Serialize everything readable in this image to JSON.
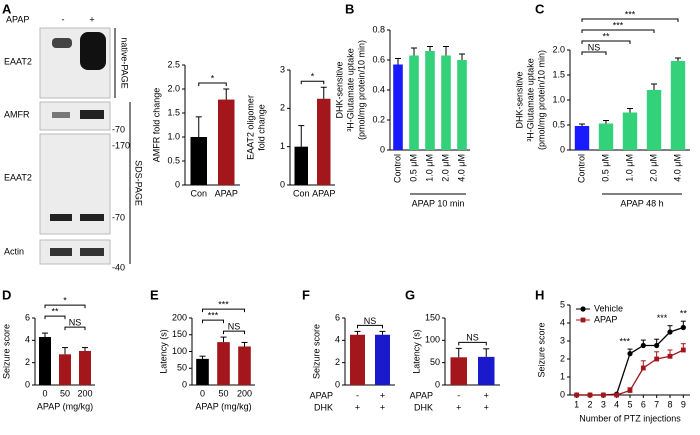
{
  "blot": {
    "panel": "A",
    "header": "APAP",
    "lanes": [
      "-",
      "+"
    ],
    "rows": [
      "EAAT2",
      "AMFR",
      "EAAT2",
      "Actin"
    ],
    "sections": [
      "native-PAGE",
      "SDS-PAGE"
    ],
    "markers": [
      "-70",
      "-170",
      "-70",
      "-40"
    ]
  },
  "chart_data": [
    {
      "type": "bar",
      "ylabel": [
        "AMFR fold change"
      ],
      "categories": [
        "Con",
        "APAP"
      ],
      "values": [
        1.0,
        1.78
      ],
      "errors": [
        0.42,
        0.22
      ],
      "colors": [
        "#000000",
        "#a3161b"
      ],
      "ylim": [
        0,
        2.5
      ],
      "yticks": [
        0,
        0.5,
        {
          "value": 1,
          "label": "1.0"
        },
        1.5,
        {
          "value": 2,
          "label": "2.0"
        },
        2.5
      ],
      "sig": [
        {
          "from": 0,
          "to": 1,
          "label": "*"
        }
      ]
    },
    {
      "type": "bar",
      "ylabel": [
        "EAAT2 oligomer",
        "fold change"
      ],
      "categories": [
        "Con",
        "APAP"
      ],
      "values": [
        1.0,
        2.25
      ],
      "errors": [
        0.55,
        0.3
      ],
      "colors": [
        "#000000",
        "#a3161b"
      ],
      "ylim": [
        0,
        3
      ],
      "yticks": [
        0,
        1,
        2,
        3
      ],
      "sig": [
        {
          "from": 0,
          "to": 1,
          "label": "*"
        }
      ]
    },
    {
      "type": "bar",
      "panel": "B",
      "ylabel": [
        "DHK-sensitive",
        "³H-Glutamate uptake",
        "(pmol/mg protein/10 min)"
      ],
      "categories": [
        "Control",
        "0.5 μM",
        "1.0 μM",
        "2.0 μM",
        "4.0 μM"
      ],
      "values": [
        0.57,
        0.63,
        0.66,
        0.63,
        0.6
      ],
      "errors": [
        0.04,
        0.05,
        0.03,
        0.06,
        0.04
      ],
      "colors": [
        "#1a1aff",
        "#33d17a",
        "#33d17a",
        "#33d17a",
        "#33d17a"
      ],
      "ylim": [
        0,
        0.8
      ],
      "yticks": [
        0,
        0.2,
        0.4,
        0.6,
        0.8
      ],
      "group": "APAP 10 min"
    },
    {
      "type": "bar",
      "panel": "C",
      "ylabel": [
        "DHK-sensitive",
        "³H-Glutamate uptake",
        "(pmol/mg protein/10 min)"
      ],
      "categories": [
        "Control",
        "0.5 μM",
        "1.0 μM",
        "2.0 μM",
        "4.0 μM"
      ],
      "values": [
        0.48,
        0.53,
        0.75,
        1.2,
        1.78
      ],
      "errors": [
        0.04,
        0.06,
        0.08,
        0.12,
        0.06
      ],
      "colors": [
        "#1a1aff",
        "#33d17a",
        "#33d17a",
        "#33d17a",
        "#33d17a"
      ],
      "ylim": [
        0,
        2
      ],
      "yticks": [
        0,
        0.5,
        {
          "value": 1,
          "label": "1.0"
        },
        1.5,
        {
          "value": 2,
          "label": "2.0"
        }
      ],
      "group": "APAP 48 h",
      "sig": [
        {
          "from": 0,
          "to": 1,
          "label": "NS"
        },
        {
          "from": 0,
          "to": 2,
          "label": "**"
        },
        {
          "from": 0,
          "to": 3,
          "label": "***"
        },
        {
          "from": 0,
          "to": 4,
          "label": "***"
        }
      ]
    },
    {
      "type": "bar",
      "panel": "D",
      "ylabel": [
        "Seizure score"
      ],
      "xlabel": "APAP (mg/kg)",
      "categories": [
        "0",
        "50",
        "200"
      ],
      "values": [
        4.3,
        2.75,
        3.05
      ],
      "errors": [
        0.35,
        0.6,
        0.3
      ],
      "colors": [
        "#000000",
        "#a3161b",
        "#a3161b"
      ],
      "ylim": [
        0,
        6
      ],
      "yticks": [
        0,
        2,
        4,
        6
      ],
      "sig": [
        {
          "from": 1,
          "to": 2,
          "label": "NS"
        },
        {
          "from": 0,
          "to": 1,
          "label": "**"
        },
        {
          "from": 0,
          "to": 2,
          "label": "*"
        }
      ]
    },
    {
      "type": "bar",
      "panel": "E",
      "ylabel": [
        "Latency (s)"
      ],
      "xlabel": "APAP (mg/kg)",
      "categories": [
        "0",
        "50",
        "200"
      ],
      "values": [
        78,
        128,
        115
      ],
      "errors": [
        8,
        15,
        12
      ],
      "colors": [
        "#000000",
        "#a3161b",
        "#a3161b"
      ],
      "ylim": [
        0,
        200
      ],
      "yticks": [
        0,
        50,
        100,
        150,
        200
      ],
      "sig": [
        {
          "from": 1,
          "to": 2,
          "label": "NS"
        },
        {
          "from": 0,
          "to": 1,
          "label": "***"
        },
        {
          "from": 0,
          "to": 2,
          "label": "***"
        }
      ]
    },
    {
      "type": "bar",
      "panel": "F",
      "ylabel": [
        "Seizure score"
      ],
      "values": [
        4.5,
        4.5
      ],
      "errors": [
        0.3,
        0.3
      ],
      "colors": [
        "#a3161b",
        "#1a1acc"
      ],
      "ylim": [
        0,
        6
      ],
      "yticks": [
        0,
        2,
        4,
        6
      ],
      "conditions": [
        {
          "name": "APAP",
          "labels": [
            "-",
            "+"
          ]
        },
        {
          "name": "DHK",
          "labels": [
            "+",
            "+"
          ]
        }
      ],
      "sig": [
        {
          "from": 0,
          "to": 1,
          "label": "NS"
        }
      ]
    },
    {
      "type": "bar",
      "panel": "G",
      "ylabel": [
        "Latency (s)"
      ],
      "values": [
        62,
        63
      ],
      "errors": [
        20,
        18
      ],
      "colors": [
        "#a3161b",
        "#1a1acc"
      ],
      "ylim": [
        0,
        150
      ],
      "yticks": [
        0,
        50,
        100,
        150
      ],
      "conditions": [
        {
          "name": "APAP",
          "labels": [
            "-",
            "+"
          ]
        },
        {
          "name": "DHK",
          "labels": [
            "+",
            "+"
          ]
        }
      ],
      "sig": [
        {
          "from": 0,
          "to": 1,
          "label": "NS"
        }
      ]
    },
    {
      "type": "line",
      "panel": "H",
      "ylabel": [
        "Seizure score"
      ],
      "xlabel": "Number of PTZ injections",
      "x": [
        1,
        2,
        3,
        4,
        5,
        6,
        7,
        8,
        9
      ],
      "xlim": [
        0.5,
        9.5
      ],
      "xticks": [
        1,
        2,
        3,
        4,
        5,
        6,
        7,
        8,
        9
      ],
      "ylim": [
        0,
        5
      ],
      "yticks": [
        0,
        1,
        2,
        3,
        4,
        5
      ],
      "legend": "upper left",
      "series": [
        {
          "name": "Vehicle",
          "color": "#000000",
          "values": [
            0,
            0,
            0,
            0.05,
            2.3,
            2.75,
            2.75,
            3.5,
            3.75
          ],
          "errors": [
            0,
            0,
            0,
            0,
            0.25,
            0.3,
            0.35,
            0.35,
            0.35
          ]
        },
        {
          "name": "APAP",
          "color": "#a3161b",
          "values": [
            0,
            0,
            0,
            0,
            0.25,
            1.5,
            2.0,
            2.15,
            2.5
          ],
          "errors": [
            0,
            0,
            0,
            0,
            0.15,
            0.4,
            0.4,
            0.35,
            0.35
          ]
        }
      ],
      "annotations": [
        {
          "x": 5,
          "label": "***"
        },
        {
          "x": 8,
          "label": "***"
        },
        {
          "x": 9,
          "label": "**"
        }
      ]
    }
  ]
}
